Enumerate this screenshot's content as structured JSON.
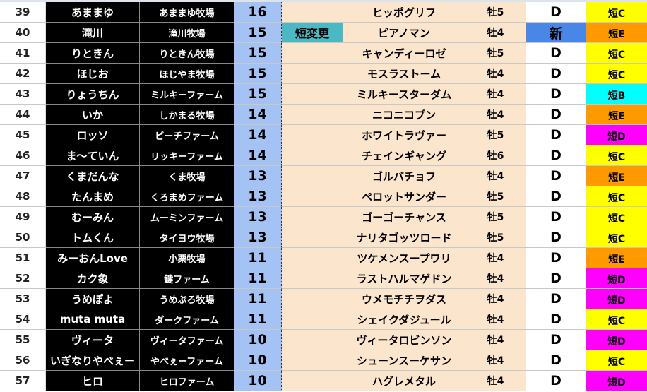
{
  "colors": {
    "C": "#ffff00",
    "E": "#ff9900",
    "B": "#00ffff",
    "D": "#ff00ff",
    "new": "#4a86e8",
    "note": "#4bb8c4"
  },
  "rows": [
    {
      "num": "39",
      "name": "あままゆ",
      "farm": "あままゆ牧場",
      "score": "16",
      "note": "",
      "horse": "ヒッポグリフ",
      "sex": "牡5",
      "rank": "D",
      "cls": "短C"
    },
    {
      "num": "40",
      "name": "滝川",
      "farm": "滝川牧場",
      "score": "15",
      "note": "短変更",
      "horse": "ピアノマン",
      "sex": "牡4",
      "rank": "新",
      "cls": "短E"
    },
    {
      "num": "41",
      "name": "りときん",
      "farm": "りときん牧場",
      "score": "15",
      "note": "",
      "horse": "キャンディーロゼ",
      "sex": "牡5",
      "rank": "D",
      "cls": "短C"
    },
    {
      "num": "42",
      "name": "ほじお",
      "farm": "ほじやま牧場",
      "score": "15",
      "note": "",
      "horse": "モスラストーム",
      "sex": "牡4",
      "rank": "D",
      "cls": "短C"
    },
    {
      "num": "43",
      "name": "りょうちん",
      "farm": "ミルキーファーム",
      "score": "15",
      "note": "",
      "horse": "ミルキースターダム",
      "sex": "牡4",
      "rank": "D",
      "cls": "短B"
    },
    {
      "num": "44",
      "name": "いか",
      "farm": "しかまる牧場",
      "score": "14",
      "note": "",
      "horse": "ニコニコプン",
      "sex": "牡4",
      "rank": "D",
      "cls": "短E"
    },
    {
      "num": "45",
      "name": "ロッソ",
      "farm": "ピーチファーム",
      "score": "14",
      "note": "",
      "horse": "ホワイトラヴァー",
      "sex": "牡5",
      "rank": "D",
      "cls": "短D"
    },
    {
      "num": "46",
      "name": "ま～ていん",
      "farm": "リッキーファーム",
      "score": "14",
      "note": "",
      "horse": "チェインギャング",
      "sex": "牡6",
      "rank": "D",
      "cls": "短C"
    },
    {
      "num": "47",
      "name": "くまだんな",
      "farm": "くま牧場",
      "score": "13",
      "note": "",
      "horse": "ゴルバチョフ",
      "sex": "牡4",
      "rank": "D",
      "cls": "短E"
    },
    {
      "num": "48",
      "name": "たんまめ",
      "farm": "くろまめファーム",
      "score": "13",
      "note": "",
      "horse": "ペロットサンダー",
      "sex": "牡5",
      "rank": "D",
      "cls": "短C"
    },
    {
      "num": "49",
      "name": "むーみん",
      "farm": "ムーミンファーム",
      "score": "13",
      "note": "",
      "horse": "ゴーゴーチャンス",
      "sex": "牡5",
      "rank": "D",
      "cls": "短C"
    },
    {
      "num": "50",
      "name": "トムくん",
      "farm": "タイヨウ牧場",
      "score": "13",
      "note": "",
      "horse": "ナリタゴッツロード",
      "sex": "牡5",
      "rank": "D",
      "cls": "短C"
    },
    {
      "num": "51",
      "name": "みーおんLove",
      "farm": "小栗牧場",
      "score": "11",
      "note": "",
      "horse": "ツケメンスープワリ",
      "sex": "牡4",
      "rank": "D",
      "cls": "短E"
    },
    {
      "num": "52",
      "name": "カク象",
      "farm": "鍵ファーム",
      "score": "11",
      "note": "",
      "horse": "ラストハルマゲドン",
      "sex": "牡4",
      "rank": "D",
      "cls": "短D"
    },
    {
      "num": "53",
      "name": "うめぽよ",
      "farm": "うめぷろ牧場",
      "score": "11",
      "note": "",
      "horse": "ウメモチチヲダス",
      "sex": "牡4",
      "rank": "D",
      "cls": "短D"
    },
    {
      "num": "54",
      "name": "muta muta",
      "farm": "ダークファーム",
      "score": "11",
      "note": "",
      "horse": "シェイクダジュール",
      "sex": "牡4",
      "rank": "D",
      "cls": "短C"
    },
    {
      "num": "55",
      "name": "ヴィータ",
      "farm": "ヴィータファーム",
      "score": "10",
      "note": "",
      "horse": "ヴィータロビンソン",
      "sex": "牡4",
      "rank": "D",
      "cls": "短D"
    },
    {
      "num": "56",
      "name": "いぎなりやべぇー",
      "farm": "やべぇーファーム",
      "score": "10",
      "note": "",
      "horse": "シューンスーケサン",
      "sex": "牡4",
      "rank": "D",
      "cls": "短C"
    },
    {
      "num": "57",
      "name": "ヒロ",
      "farm": "ヒロファーム",
      "score": "10",
      "note": "",
      "horse": "ハグレメタル",
      "sex": "牡4",
      "rank": "D",
      "cls": "短D"
    }
  ]
}
